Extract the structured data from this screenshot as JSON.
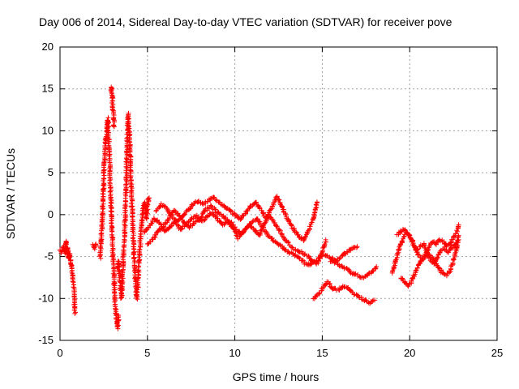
{
  "chart_data": {
    "type": "scatter",
    "title": "Day 006 of 2014, Sidereal Day-to-day VTEC variation (SDTVAR) for receiver pove",
    "xlabel": "GPS time / hours",
    "ylabel": "SDTVAR / TECUs",
    "xlim": [
      0,
      25
    ],
    "ylim": [
      -15,
      20
    ],
    "xticks": [
      0,
      5,
      10,
      15,
      20,
      25
    ],
    "yticks": [
      -15,
      -10,
      -5,
      0,
      5,
      10,
      15,
      20
    ],
    "xtick_labels": [
      "0",
      "5",
      "10",
      "15",
      "20",
      "25"
    ],
    "ytick_labels": [
      "-15",
      "-10",
      "-5",
      "0",
      "5",
      "10",
      "15",
      "20"
    ],
    "grid": true,
    "marker": "+",
    "color": "#ff0000",
    "series": [
      {
        "name": "SDTVAR",
        "segments": [
          [
            [
              0.0,
              -4.2
            ],
            [
              0.1,
              -4.5
            ],
            [
              0.2,
              -3.8
            ],
            [
              0.3,
              -4.6
            ],
            [
              0.35,
              -3.2
            ],
            [
              0.4,
              -4.8
            ],
            [
              0.45,
              -4.0
            ],
            [
              0.5,
              -5.2
            ],
            [
              0.55,
              -4.6
            ],
            [
              0.6,
              -5.5
            ],
            [
              0.65,
              -6.0
            ],
            [
              0.7,
              -6.8
            ],
            [
              0.75,
              -7.5
            ],
            [
              0.8,
              -9.0
            ],
            [
              0.82,
              -10.2
            ],
            [
              0.85,
              -11.8
            ]
          ],
          [
            [
              1.9,
              -3.6
            ],
            [
              2.0,
              -4.0
            ],
            [
              2.05,
              -3.5
            ]
          ],
          [
            [
              2.3,
              -5.2
            ],
            [
              2.35,
              -3.0
            ],
            [
              2.4,
              -1.5
            ],
            [
              2.45,
              1.0
            ],
            [
              2.5,
              4.0
            ],
            [
              2.55,
              6.5
            ],
            [
              2.6,
              8.5
            ],
            [
              2.65,
              9.5
            ],
            [
              2.7,
              10.8
            ],
            [
              2.75,
              11.5
            ],
            [
              2.8,
              8.0
            ],
            [
              2.85,
              6.0
            ],
            [
              2.9,
              2.0
            ],
            [
              2.95,
              -0.5
            ],
            [
              3.0,
              -3.5
            ],
            [
              3.05,
              -5.5
            ],
            [
              3.1,
              -8.0
            ],
            [
              3.15,
              -10.5
            ],
            [
              3.2,
              -11.8
            ],
            [
              3.25,
              -12.8
            ],
            [
              3.3,
              -13.5
            ],
            [
              3.35,
              -12.0
            ]
          ],
          [
            [
              2.9,
              14.8
            ],
            [
              2.95,
              15.2
            ],
            [
              3.0,
              13.5
            ],
            [
              3.05,
              12.0
            ],
            [
              3.1,
              10.5
            ]
          ],
          [
            [
              3.3,
              -6.5
            ],
            [
              3.35,
              -5.5
            ],
            [
              3.4,
              -7.0
            ],
            [
              3.45,
              -8.5
            ],
            [
              3.5,
              -10.0
            ],
            [
              3.55,
              -9.0
            ],
            [
              3.6,
              -6.0
            ],
            [
              3.65,
              -4.0
            ],
            [
              3.7,
              -2.0
            ],
            [
              3.75,
              1.0
            ],
            [
              3.8,
              4.0
            ],
            [
              3.82,
              7.0
            ],
            [
              3.85,
              9.0
            ],
            [
              3.88,
              11.0
            ],
            [
              3.9,
              12.0
            ],
            [
              3.95,
              10.5
            ],
            [
              4.0,
              8.0
            ],
            [
              4.05,
              5.0
            ],
            [
              4.1,
              2.0
            ],
            [
              4.15,
              -1.0
            ],
            [
              4.2,
              -3.0
            ],
            [
              4.25,
              -5.5
            ],
            [
              4.3,
              -7.5
            ],
            [
              4.35,
              -9.0
            ],
            [
              4.4,
              -10.0
            ],
            [
              4.45,
              -8.5
            ],
            [
              4.5,
              -6.5
            ],
            [
              4.55,
              -4.5
            ],
            [
              4.6,
              -3.0
            ],
            [
              4.65,
              -1.5
            ],
            [
              4.7,
              -0.5
            ],
            [
              4.75,
              0.5
            ],
            [
              4.8,
              1.0
            ],
            [
              4.85,
              1.5
            ],
            [
              4.9,
              0.5
            ],
            [
              4.95,
              -0.5
            ],
            [
              5.0,
              0.8
            ],
            [
              5.05,
              1.8
            ],
            [
              5.1,
              2.0
            ]
          ],
          [
            [
              5.0,
              -3.5
            ],
            [
              5.3,
              -3.0
            ],
            [
              5.6,
              -2.0
            ],
            [
              5.9,
              -1.5
            ],
            [
              6.2,
              -0.5
            ],
            [
              6.5,
              0.5
            ],
            [
              6.8,
              0.0
            ],
            [
              7.1,
              -1.0
            ],
            [
              7.4,
              -1.5
            ],
            [
              7.7,
              -1.0
            ],
            [
              8.0,
              -0.5
            ],
            [
              8.3,
              0.5
            ],
            [
              8.6,
              1.0
            ],
            [
              8.9,
              0.5
            ],
            [
              9.2,
              0.0
            ],
            [
              9.5,
              -0.5
            ],
            [
              9.8,
              -1.0
            ],
            [
              10.1,
              -1.8
            ],
            [
              10.4,
              -2.2
            ],
            [
              10.7,
              -1.5
            ],
            [
              11.0,
              -0.8
            ],
            [
              11.3,
              -0.5
            ],
            [
              11.6,
              -1.5
            ],
            [
              11.9,
              -2.5
            ],
            [
              12.2,
              -3.0
            ],
            [
              12.5,
              -3.5
            ],
            [
              12.8,
              -4.0
            ],
            [
              13.1,
              -4.5
            ],
            [
              13.4,
              -4.8
            ],
            [
              13.7,
              -5.2
            ],
            [
              14.0,
              -5.8
            ],
            [
              14.3,
              -6.0
            ],
            [
              14.6,
              -5.5
            ],
            [
              14.9,
              -5.0
            ],
            [
              15.2,
              -4.8
            ],
            [
              15.5,
              -5.2
            ],
            [
              15.8,
              -5.5
            ],
            [
              16.1,
              -5.0
            ],
            [
              16.4,
              -4.5
            ],
            [
              16.7,
              -4.0
            ],
            [
              17.0,
              -3.8
            ]
          ],
          [
            [
              5.5,
              0.5
            ],
            [
              5.8,
              1.2
            ],
            [
              6.1,
              0.8
            ],
            [
              6.4,
              -0.2
            ],
            [
              6.7,
              -0.8
            ],
            [
              7.0,
              -0.2
            ],
            [
              7.3,
              0.5
            ],
            [
              7.6,
              1.2
            ],
            [
              7.9,
              1.6
            ],
            [
              8.2,
              1.2
            ],
            [
              8.5,
              1.8
            ],
            [
              8.8,
              2.0
            ],
            [
              9.1,
              1.5
            ],
            [
              9.4,
              1.0
            ],
            [
              9.7,
              0.5
            ],
            [
              10.0,
              0.0
            ],
            [
              10.3,
              -0.5
            ],
            [
              10.6,
              0.2
            ],
            [
              10.9,
              1.0
            ],
            [
              11.2,
              1.5
            ],
            [
              11.5,
              0.5
            ],
            [
              11.8,
              -0.5
            ],
            [
              12.1,
              0.8
            ],
            [
              12.4,
              2.2
            ],
            [
              12.7,
              1.0
            ],
            [
              13.0,
              -0.5
            ],
            [
              13.3,
              -1.5
            ],
            [
              13.6,
              -2.5
            ],
            [
              13.9,
              -3.0
            ],
            [
              14.2,
              -2.0
            ],
            [
              14.5,
              -0.5
            ],
            [
              14.7,
              1.5
            ]
          ],
          [
            [
              4.8,
              -2.0
            ],
            [
              5.1,
              -1.5
            ],
            [
              5.4,
              -0.5
            ],
            [
              5.7,
              -1.0
            ],
            [
              6.0,
              -2.0
            ],
            [
              6.3,
              -1.5
            ],
            [
              6.6,
              -0.8
            ],
            [
              6.9,
              -1.8
            ],
            [
              7.2,
              -1.2
            ],
            [
              7.5,
              -0.5
            ],
            [
              7.8,
              -0.2
            ],
            [
              8.1,
              -0.8
            ],
            [
              8.4,
              -0.3
            ],
            [
              8.7,
              0.2
            ],
            [
              9.0,
              -0.5
            ],
            [
              9.3,
              -1.2
            ],
            [
              9.6,
              -0.8
            ],
            [
              9.9,
              -1.5
            ],
            [
              10.2,
              -2.8
            ],
            [
              10.5,
              -2.0
            ],
            [
              10.8,
              -1.2
            ],
            [
              11.1,
              -1.8
            ],
            [
              11.4,
              -2.5
            ],
            [
              11.7,
              -1.0
            ],
            [
              12.0,
              -0.2
            ],
            [
              12.3,
              -1.0
            ],
            [
              12.6,
              -2.0
            ],
            [
              12.9,
              -3.0
            ],
            [
              13.2,
              -3.8
            ],
            [
              13.5,
              -4.2
            ],
            [
              13.8,
              -4.5
            ],
            [
              14.1,
              -4.8
            ],
            [
              14.4,
              -5.5
            ],
            [
              14.7,
              -5.8
            ],
            [
              15.0,
              -4.5
            ],
            [
              15.2,
              -3.0
            ]
          ],
          [
            [
              14.5,
              -10.0
            ],
            [
              14.8,
              -9.5
            ],
            [
              15.1,
              -8.5
            ],
            [
              15.3,
              -8.0
            ],
            [
              15.6,
              -8.8
            ],
            [
              15.9,
              -9.0
            ],
            [
              16.2,
              -8.5
            ],
            [
              16.5,
              -8.8
            ],
            [
              16.8,
              -9.5
            ],
            [
              17.1,
              -9.8
            ],
            [
              17.4,
              -10.2
            ],
            [
              17.7,
              -10.5
            ],
            [
              18.0,
              -10.2
            ]
          ],
          [
            [
              15.5,
              -5.5
            ],
            [
              15.8,
              -5.8
            ],
            [
              16.1,
              -6.2
            ],
            [
              16.4,
              -6.5
            ],
            [
              16.7,
              -7.0
            ],
            [
              17.0,
              -7.2
            ],
            [
              17.3,
              -7.5
            ],
            [
              17.6,
              -7.2
            ],
            [
              17.9,
              -6.8
            ],
            [
              18.1,
              -6.2
            ]
          ],
          [
            [
              19.0,
              -7.0
            ],
            [
              19.2,
              -5.5
            ],
            [
              19.4,
              -4.0
            ],
            [
              19.6,
              -3.0
            ],
            [
              19.8,
              -2.2
            ],
            [
              20.0,
              -2.5
            ],
            [
              20.2,
              -3.5
            ],
            [
              20.4,
              -4.2
            ],
            [
              20.6,
              -3.8
            ],
            [
              20.8,
              -3.5
            ],
            [
              21.0,
              -4.5
            ],
            [
              21.2,
              -5.5
            ],
            [
              21.4,
              -5.8
            ],
            [
              21.6,
              -5.0
            ],
            [
              21.8,
              -4.2
            ],
            [
              22.0,
              -4.0
            ],
            [
              22.2,
              -4.5
            ],
            [
              22.4,
              -4.0
            ],
            [
              22.6,
              -3.5
            ],
            [
              22.8,
              -3.0
            ]
          ],
          [
            [
              19.3,
              -2.5
            ],
            [
              19.5,
              -2.0
            ],
            [
              19.7,
              -1.8
            ],
            [
              19.9,
              -2.2
            ],
            [
              20.1,
              -2.8
            ],
            [
              20.3,
              -3.8
            ],
            [
              20.5,
              -4.8
            ],
            [
              20.7,
              -5.2
            ],
            [
              20.9,
              -4.8
            ],
            [
              21.1,
              -3.8
            ],
            [
              21.3,
              -3.2
            ],
            [
              21.5,
              -3.5
            ],
            [
              21.7,
              -3.0
            ],
            [
              21.9,
              -3.2
            ],
            [
              22.1,
              -3.8
            ],
            [
              22.3,
              -3.5
            ],
            [
              22.5,
              -2.8
            ],
            [
              22.7,
              -2.0
            ],
            [
              22.8,
              -1.2
            ]
          ],
          [
            [
              19.5,
              -7.5
            ],
            [
              19.7,
              -8.0
            ],
            [
              19.9,
              -8.5
            ],
            [
              20.1,
              -8.0
            ],
            [
              20.3,
              -7.0
            ],
            [
              20.5,
              -6.0
            ],
            [
              20.7,
              -5.5
            ],
            [
              20.9,
              -5.0
            ],
            [
              21.1,
              -4.8
            ],
            [
              21.3,
              -5.2
            ],
            [
              21.5,
              -5.8
            ],
            [
              21.7,
              -6.5
            ],
            [
              21.9,
              -7.0
            ],
            [
              22.1,
              -7.2
            ],
            [
              22.3,
              -6.8
            ],
            [
              22.5,
              -5.5
            ],
            [
              22.7,
              -4.0
            ],
            [
              22.8,
              -2.5
            ]
          ]
        ]
      }
    ]
  }
}
